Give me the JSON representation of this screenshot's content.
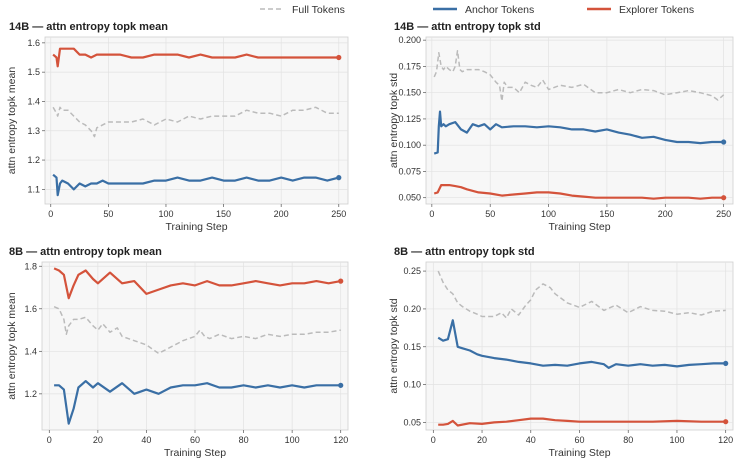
{
  "legend": {
    "items": [
      {
        "label": "Full Tokens",
        "color": "#bbbbbb",
        "dash": true
      },
      {
        "label": "Anchor Tokens",
        "color": "#3a6fa5",
        "dash": false
      },
      {
        "label": "Explorer Tokens",
        "color": "#d4533b",
        "dash": false
      }
    ]
  },
  "chart_data": [
    {
      "type": "line",
      "title": "14B — attn entropy topk mean",
      "xlabel": "Training Step",
      "ylabel": "attn entropy topk mean",
      "xlim": [
        -5,
        258
      ],
      "ylim": [
        1.05,
        1.62
      ],
      "xticks": [
        0,
        50,
        100,
        150,
        200,
        250
      ],
      "yticks": [
        1.1,
        1.2,
        1.3,
        1.4,
        1.5,
        1.6
      ],
      "ytick_labels": [
        "1.1",
        "1.2",
        "1.3",
        "1.4",
        "1.5",
        "1.6"
      ],
      "grid": true,
      "series": [
        {
          "name": "Full Tokens",
          "x": [
            2,
            5,
            6,
            8,
            10,
            15,
            20,
            25,
            30,
            35,
            38,
            40,
            45,
            50,
            60,
            70,
            80,
            90,
            100,
            110,
            120,
            130,
            140,
            150,
            160,
            170,
            180,
            190,
            200,
            210,
            220,
            230,
            240,
            250
          ],
          "y": [
            1.38,
            1.36,
            1.35,
            1.38,
            1.37,
            1.37,
            1.35,
            1.33,
            1.32,
            1.3,
            1.28,
            1.31,
            1.32,
            1.33,
            1.33,
            1.33,
            1.34,
            1.32,
            1.34,
            1.33,
            1.35,
            1.34,
            1.35,
            1.35,
            1.35,
            1.37,
            1.36,
            1.36,
            1.35,
            1.37,
            1.37,
            1.38,
            1.36,
            1.36
          ]
        },
        {
          "name": "Anchor Tokens",
          "x": [
            2,
            5,
            6,
            8,
            10,
            15,
            20,
            25,
            30,
            35,
            40,
            45,
            50,
            60,
            70,
            80,
            90,
            100,
            110,
            120,
            130,
            140,
            150,
            160,
            170,
            180,
            190,
            200,
            210,
            220,
            230,
            240,
            250
          ],
          "y": [
            1.15,
            1.14,
            1.08,
            1.12,
            1.13,
            1.12,
            1.1,
            1.12,
            1.11,
            1.12,
            1.12,
            1.13,
            1.12,
            1.12,
            1.12,
            1.12,
            1.13,
            1.13,
            1.14,
            1.13,
            1.13,
            1.14,
            1.13,
            1.13,
            1.14,
            1.13,
            1.13,
            1.14,
            1.13,
            1.14,
            1.14,
            1.13,
            1.14
          ]
        },
        {
          "name": "Explorer Tokens",
          "x": [
            2,
            5,
            6,
            8,
            10,
            15,
            20,
            25,
            30,
            35,
            40,
            45,
            50,
            60,
            70,
            80,
            90,
            100,
            110,
            120,
            130,
            140,
            150,
            160,
            170,
            180,
            190,
            200,
            210,
            220,
            230,
            240,
            250
          ],
          "y": [
            1.56,
            1.55,
            1.52,
            1.58,
            1.58,
            1.58,
            1.58,
            1.56,
            1.56,
            1.55,
            1.56,
            1.56,
            1.56,
            1.56,
            1.55,
            1.55,
            1.56,
            1.56,
            1.56,
            1.55,
            1.56,
            1.55,
            1.55,
            1.55,
            1.56,
            1.55,
            1.55,
            1.55,
            1.55,
            1.55,
            1.55,
            1.55,
            1.55
          ]
        }
      ]
    },
    {
      "type": "line",
      "title": "14B — attn entropy topk std",
      "xlabel": "Training Step",
      "ylabel": "attn entropy topk std",
      "xlim": [
        -5,
        258
      ],
      "ylim": [
        0.044,
        0.203
      ],
      "xticks": [
        0,
        50,
        100,
        150,
        200,
        250
      ],
      "yticks": [
        0.05,
        0.075,
        0.1,
        0.125,
        0.15,
        0.175,
        0.2
      ],
      "ytick_labels": [
        "0.050",
        "0.075",
        "0.100",
        "0.125",
        "0.150",
        "0.175",
        "0.200"
      ],
      "grid": true,
      "series": [
        {
          "name": "Full Tokens",
          "x": [
            2,
            4,
            6,
            8,
            10,
            12,
            15,
            18,
            20,
            22,
            24,
            26,
            30,
            35,
            40,
            45,
            50,
            55,
            58,
            60,
            62,
            65,
            70,
            75,
            80,
            85,
            90,
            95,
            100,
            110,
            120,
            130,
            140,
            150,
            160,
            170,
            180,
            190,
            200,
            210,
            220,
            230,
            240,
            245,
            250
          ],
          "y": [
            0.165,
            0.17,
            0.188,
            0.175,
            0.172,
            0.175,
            0.172,
            0.17,
            0.175,
            0.19,
            0.172,
            0.17,
            0.172,
            0.172,
            0.172,
            0.17,
            0.167,
            0.16,
            0.157,
            0.142,
            0.16,
            0.155,
            0.155,
            0.15,
            0.16,
            0.157,
            0.155,
            0.162,
            0.153,
            0.157,
            0.155,
            0.158,
            0.15,
            0.15,
            0.153,
            0.15,
            0.153,
            0.152,
            0.148,
            0.15,
            0.152,
            0.15,
            0.147,
            0.143,
            0.148
          ]
        },
        {
          "name": "Anchor Tokens",
          "x": [
            2,
            5,
            6,
            7,
            8,
            10,
            12,
            15,
            20,
            25,
            30,
            35,
            40,
            45,
            50,
            55,
            60,
            70,
            80,
            90,
            100,
            110,
            120,
            130,
            140,
            150,
            160,
            170,
            180,
            190,
            200,
            210,
            220,
            230,
            240,
            250
          ],
          "y": [
            0.092,
            0.093,
            0.118,
            0.132,
            0.118,
            0.12,
            0.118,
            0.12,
            0.122,
            0.115,
            0.112,
            0.12,
            0.118,
            0.12,
            0.115,
            0.12,
            0.117,
            0.118,
            0.118,
            0.117,
            0.118,
            0.117,
            0.115,
            0.115,
            0.113,
            0.115,
            0.112,
            0.11,
            0.107,
            0.108,
            0.105,
            0.103,
            0.103,
            0.102,
            0.103,
            0.103
          ]
        },
        {
          "name": "Explorer Tokens",
          "x": [
            2,
            5,
            8,
            10,
            15,
            20,
            25,
            30,
            40,
            50,
            60,
            70,
            80,
            90,
            100,
            110,
            120,
            130,
            140,
            150,
            160,
            170,
            180,
            190,
            200,
            210,
            220,
            230,
            240,
            250
          ],
          "y": [
            0.054,
            0.055,
            0.062,
            0.062,
            0.062,
            0.061,
            0.06,
            0.058,
            0.055,
            0.054,
            0.052,
            0.053,
            0.054,
            0.055,
            0.055,
            0.054,
            0.052,
            0.051,
            0.05,
            0.05,
            0.05,
            0.05,
            0.05,
            0.049,
            0.05,
            0.05,
            0.05,
            0.049,
            0.05,
            0.05
          ]
        }
      ]
    },
    {
      "type": "line",
      "title": "8B — attn entropy topk mean",
      "xlabel": "Training Step",
      "ylabel": "attn entropy topk mean",
      "xlim": [
        -3,
        123
      ],
      "ylim": [
        1.03,
        1.82
      ],
      "xticks": [
        0,
        20,
        40,
        60,
        80,
        100,
        120
      ],
      "yticks": [
        1.2,
        1.4,
        1.6,
        1.8
      ],
      "ytick_labels": [
        "1.2",
        "1.4",
        "1.6",
        "1.8"
      ],
      "grid": true,
      "series": [
        {
          "name": "Full Tokens",
          "x": [
            2,
            4,
            6,
            7,
            8,
            10,
            12,
            15,
            18,
            20,
            22,
            25,
            28,
            30,
            35,
            40,
            45,
            50,
            55,
            60,
            62,
            64,
            66,
            70,
            75,
            80,
            85,
            90,
            95,
            100,
            105,
            110,
            115,
            120
          ],
          "y": [
            1.61,
            1.6,
            1.55,
            1.48,
            1.52,
            1.55,
            1.55,
            1.56,
            1.52,
            1.5,
            1.53,
            1.49,
            1.51,
            1.47,
            1.45,
            1.43,
            1.39,
            1.42,
            1.45,
            1.47,
            1.5,
            1.47,
            1.46,
            1.48,
            1.46,
            1.47,
            1.46,
            1.48,
            1.47,
            1.48,
            1.48,
            1.49,
            1.49,
            1.5
          ]
        },
        {
          "name": "Anchor Tokens",
          "x": [
            2,
            4,
            6,
            8,
            10,
            12,
            15,
            18,
            20,
            25,
            30,
            35,
            40,
            45,
            50,
            55,
            60,
            65,
            70,
            75,
            80,
            85,
            90,
            95,
            100,
            105,
            110,
            115,
            120
          ],
          "y": [
            1.24,
            1.24,
            1.22,
            1.06,
            1.13,
            1.23,
            1.26,
            1.23,
            1.25,
            1.21,
            1.25,
            1.2,
            1.22,
            1.2,
            1.23,
            1.24,
            1.24,
            1.25,
            1.23,
            1.23,
            1.24,
            1.23,
            1.24,
            1.23,
            1.24,
            1.23,
            1.24,
            1.24,
            1.24
          ]
        },
        {
          "name": "Explorer Tokens",
          "x": [
            2,
            4,
            6,
            8,
            10,
            12,
            15,
            18,
            20,
            25,
            30,
            35,
            40,
            45,
            50,
            55,
            60,
            65,
            70,
            75,
            80,
            85,
            90,
            95,
            100,
            105,
            110,
            115,
            120
          ],
          "y": [
            1.79,
            1.78,
            1.76,
            1.65,
            1.71,
            1.76,
            1.78,
            1.74,
            1.72,
            1.77,
            1.72,
            1.73,
            1.67,
            1.69,
            1.71,
            1.72,
            1.71,
            1.73,
            1.71,
            1.71,
            1.72,
            1.73,
            1.72,
            1.71,
            1.72,
            1.72,
            1.73,
            1.72,
            1.73
          ]
        }
      ]
    },
    {
      "type": "line",
      "title": "8B — attn entropy topk std",
      "xlabel": "Training Step",
      "ylabel": "attn entropy topk std",
      "xlim": [
        -3,
        123
      ],
      "ylim": [
        0.04,
        0.262
      ],
      "xticks": [
        0,
        20,
        40,
        60,
        80,
        100,
        120
      ],
      "yticks": [
        0.05,
        0.1,
        0.15,
        0.2,
        0.25
      ],
      "ytick_labels": [
        "0.05",
        "0.10",
        "0.15",
        "0.20",
        "0.25"
      ],
      "grid": true,
      "series": [
        {
          "name": "Full Tokens",
          "x": [
            2,
            4,
            6,
            8,
            10,
            12,
            15,
            18,
            20,
            25,
            28,
            30,
            32,
            35,
            38,
            40,
            42,
            45,
            48,
            50,
            55,
            60,
            65,
            70,
            75,
            80,
            85,
            90,
            95,
            100,
            105,
            110,
            115,
            120
          ],
          "y": [
            0.25,
            0.235,
            0.225,
            0.22,
            0.208,
            0.203,
            0.197,
            0.193,
            0.19,
            0.19,
            0.195,
            0.188,
            0.2,
            0.192,
            0.205,
            0.212,
            0.225,
            0.233,
            0.228,
            0.22,
            0.208,
            0.202,
            0.21,
            0.198,
            0.205,
            0.195,
            0.203,
            0.198,
            0.197,
            0.193,
            0.195,
            0.192,
            0.197,
            0.198
          ]
        },
        {
          "name": "Anchor Tokens",
          "x": [
            2,
            4,
            6,
            8,
            10,
            12,
            15,
            18,
            20,
            25,
            30,
            35,
            40,
            45,
            50,
            55,
            60,
            65,
            70,
            72,
            75,
            80,
            85,
            90,
            95,
            100,
            105,
            110,
            115,
            120
          ],
          "y": [
            0.162,
            0.158,
            0.16,
            0.185,
            0.15,
            0.148,
            0.145,
            0.14,
            0.138,
            0.135,
            0.133,
            0.13,
            0.128,
            0.125,
            0.126,
            0.125,
            0.128,
            0.13,
            0.127,
            0.122,
            0.127,
            0.125,
            0.127,
            0.125,
            0.126,
            0.124,
            0.126,
            0.127,
            0.128,
            0.128
          ]
        },
        {
          "name": "Explorer Tokens",
          "x": [
            2,
            4,
            6,
            8,
            10,
            15,
            20,
            25,
            30,
            35,
            40,
            45,
            50,
            55,
            60,
            70,
            80,
            90,
            100,
            110,
            120
          ],
          "y": [
            0.047,
            0.047,
            0.048,
            0.052,
            0.046,
            0.049,
            0.048,
            0.05,
            0.051,
            0.053,
            0.055,
            0.055,
            0.053,
            0.052,
            0.051,
            0.051,
            0.051,
            0.051,
            0.052,
            0.051,
            0.051
          ]
        }
      ]
    }
  ]
}
